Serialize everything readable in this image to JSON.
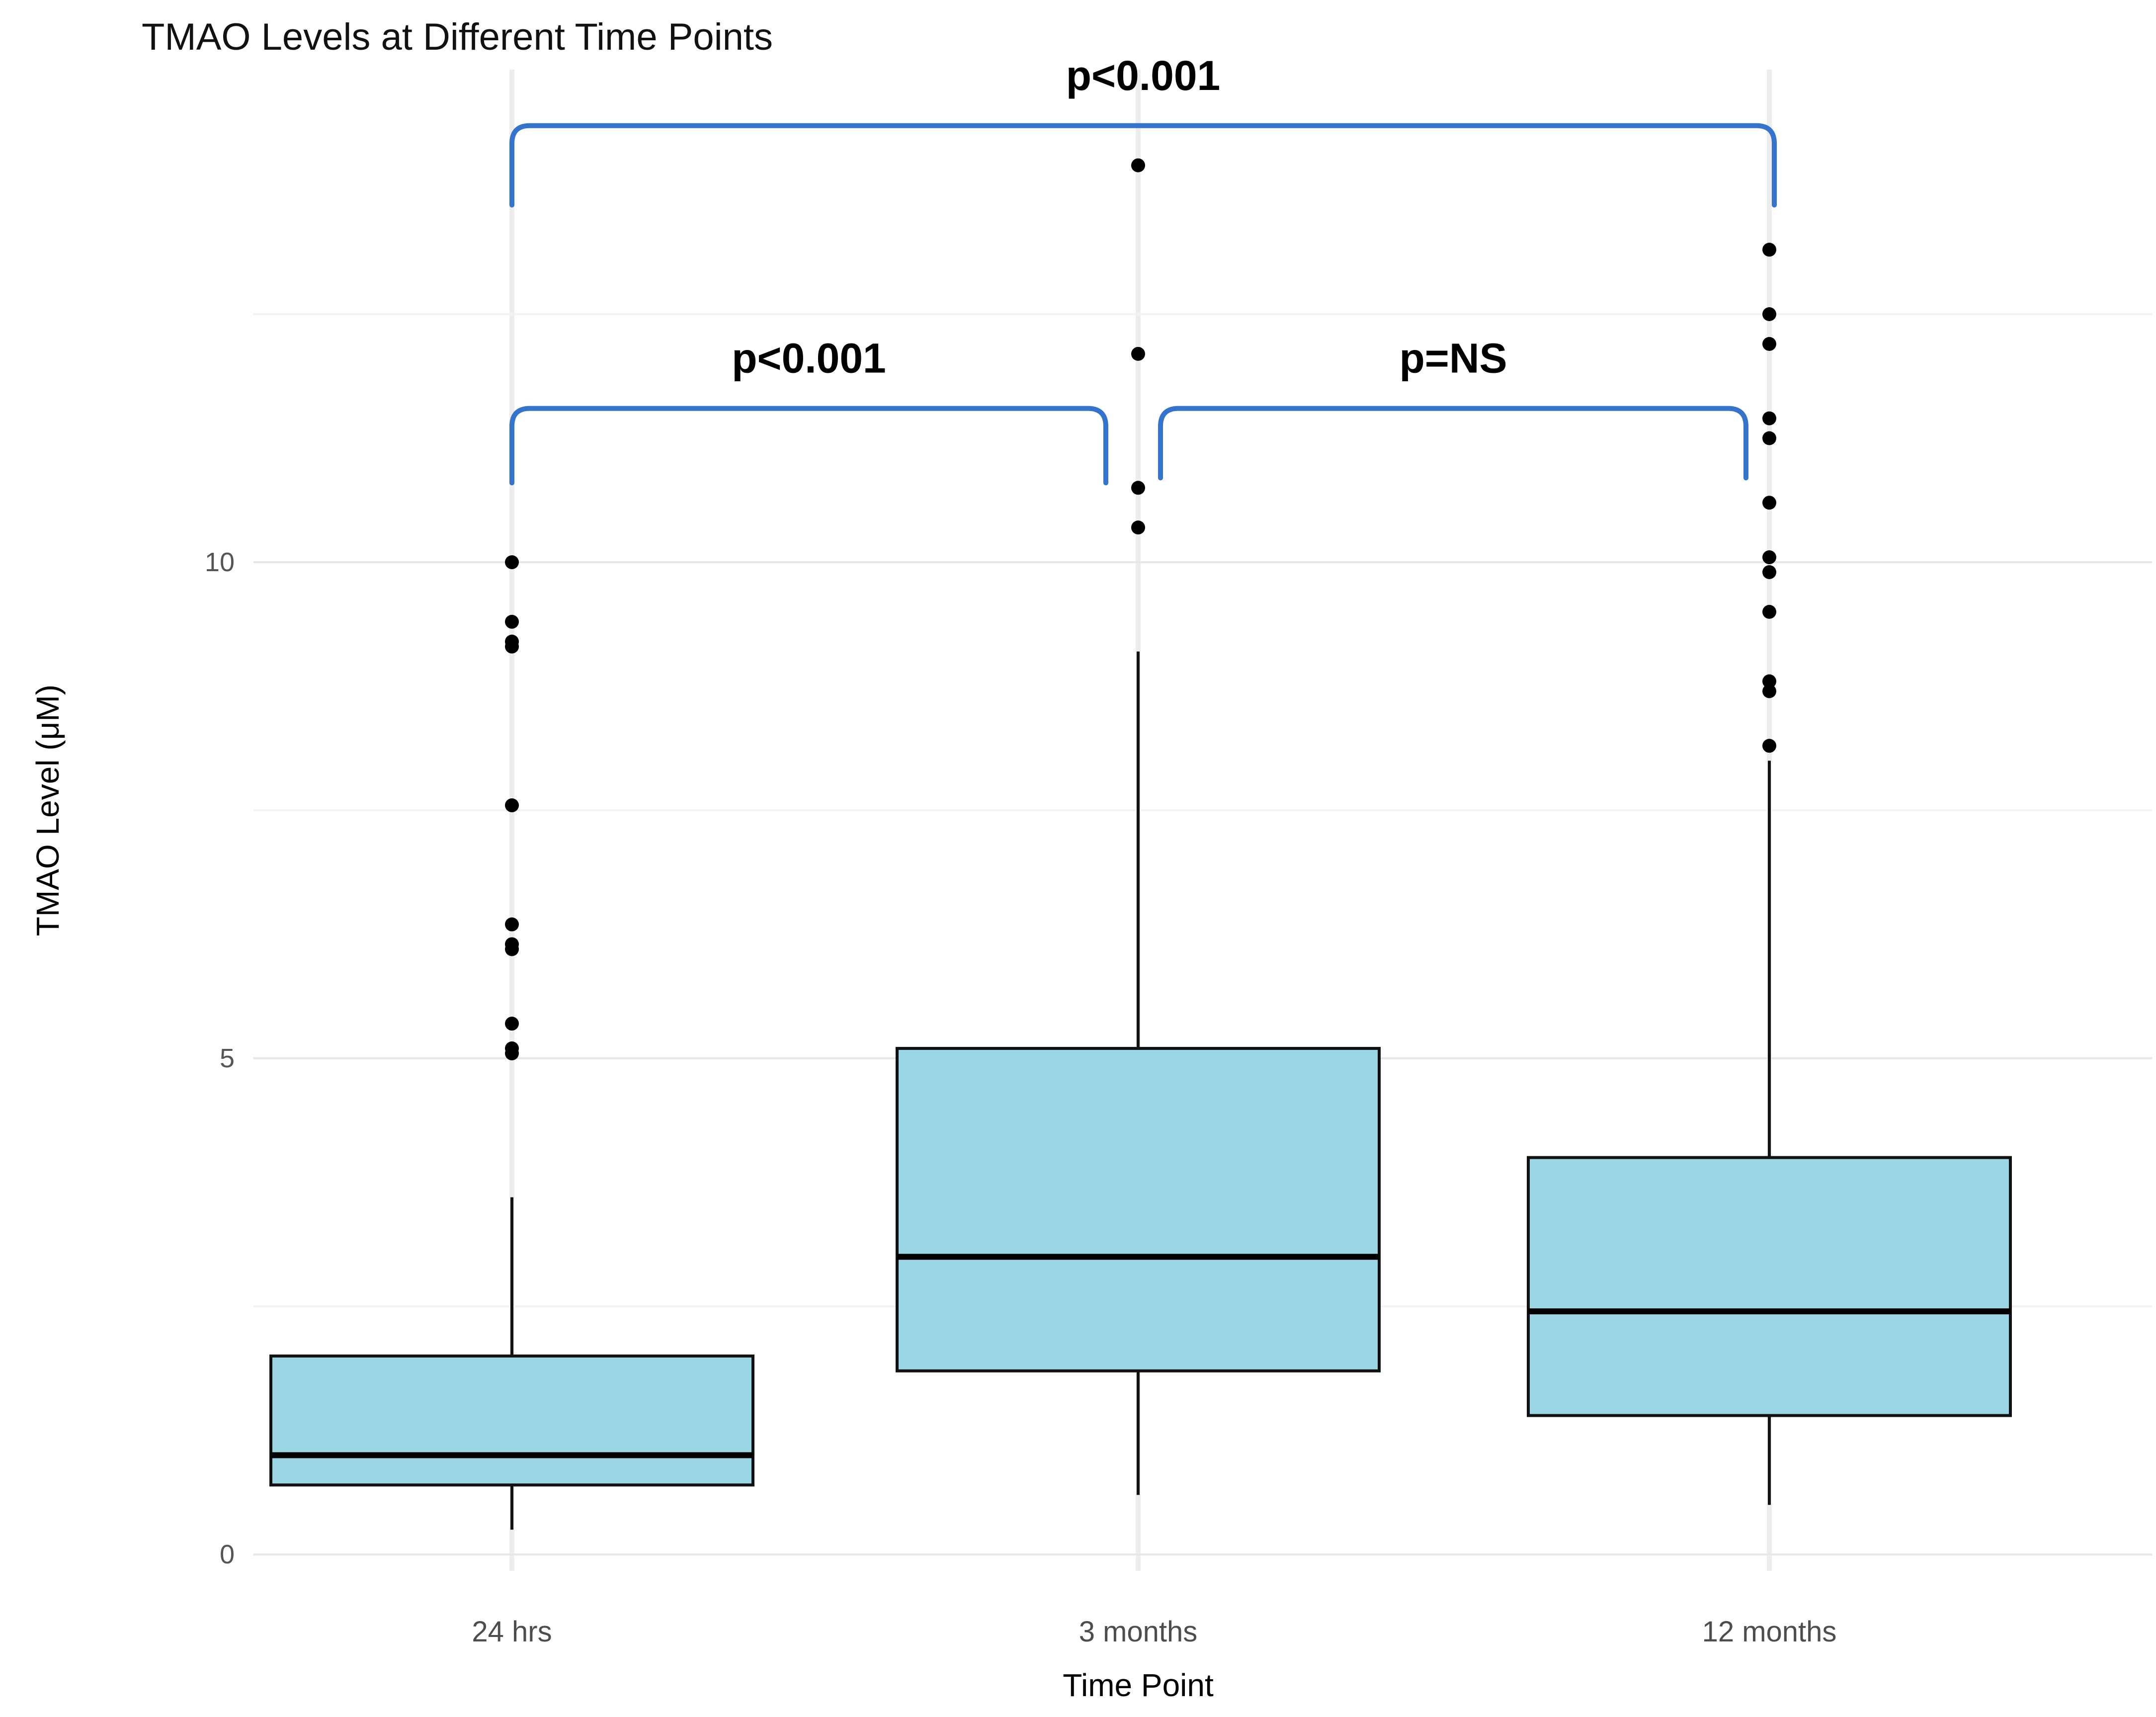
{
  "chart_data": {
    "type": "boxplot",
    "title": "TMAO Levels at Different Time Points",
    "xlabel": "Time Point",
    "ylabel": "TMAO Level (μM)",
    "categories": [
      "24 hrs",
      "3 months",
      "12 months"
    ],
    "y_ticks": [
      0,
      5,
      10
    ],
    "minor_gridlines": [
      2.5,
      7.5,
      12.5
    ],
    "ylim": [
      -0.2,
      15.0
    ],
    "grid": "on",
    "boxes": [
      {
        "category": "24 hrs",
        "whisker_low": 0.25,
        "q1": 0.7,
        "median": 1.0,
        "q3": 2.0,
        "whisker_high": 3.6,
        "outliers": [
          5.05,
          5.1,
          5.35,
          6.1,
          6.15,
          6.35,
          7.55,
          9.15,
          9.2,
          9.4,
          10.0
        ]
      },
      {
        "category": "3 months",
        "whisker_low": 0.6,
        "q1": 1.85,
        "median": 3.0,
        "q3": 5.1,
        "whisker_high": 9.1,
        "outliers": [
          10.35,
          10.75,
          12.1,
          14.0
        ]
      },
      {
        "category": "12 months",
        "whisker_low": 0.5,
        "q1": 1.4,
        "median": 2.45,
        "q3": 4.0,
        "whisker_high": 8.0,
        "outliers": [
          8.15,
          8.7,
          8.8,
          9.5,
          9.9,
          10.05,
          10.6,
          11.25,
          11.45,
          12.2,
          12.5,
          13.15
        ]
      }
    ],
    "significance_brackets": [
      {
        "label": "p<0.001",
        "from": "24 hrs",
        "to": "12 months",
        "bar_y": 14.4,
        "tail_drop": 0.8
      },
      {
        "label": "p<0.001",
        "from": "24 hrs",
        "to": "3 months",
        "bar_y": 11.55,
        "tail_drop": 0.75
      },
      {
        "label": "p=NS",
        "from": "3 months",
        "to": "12 months",
        "bar_y": 11.55,
        "tail_drop": 0.7
      }
    ],
    "colors": {
      "box_fill": "#9AD6E4",
      "box_border": "#111111",
      "median": "#000000",
      "outlier": "#000000",
      "bracket": "#3474CC",
      "grid_major": "#e7e7e7",
      "grid_minor": "#f3f3f3",
      "grid_vertical": "#ededed",
      "tick_label": "#555555",
      "category_label": "#4d4d4d",
      "text": "#000000"
    }
  }
}
